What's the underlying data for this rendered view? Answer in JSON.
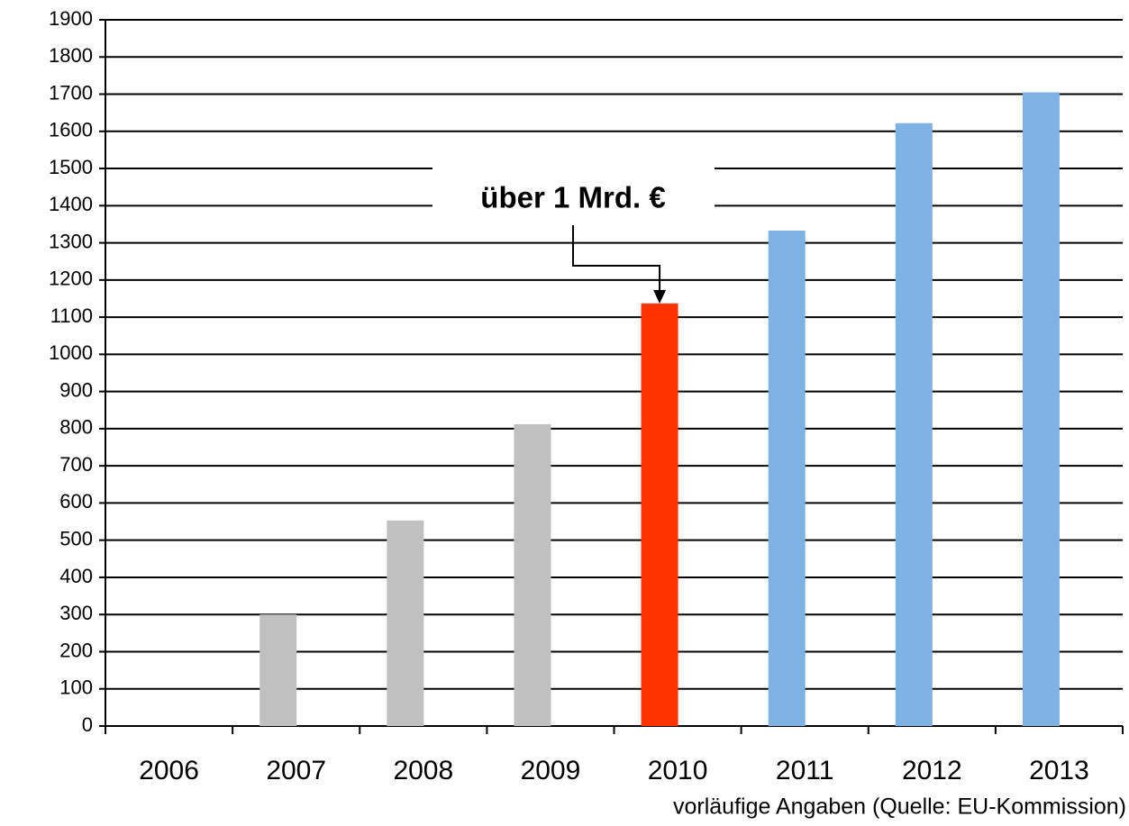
{
  "chart_data": {
    "type": "bar",
    "categories": [
      "2006",
      "2007",
      "2008",
      "2009",
      "2010",
      "2011",
      "2012",
      "2013"
    ],
    "values": [
      0,
      300,
      553,
      812,
      1137,
      1333,
      1622,
      1705
    ],
    "colors": [
      "#c0c0c0",
      "#c0c0c0",
      "#c0c0c0",
      "#c0c0c0",
      "#ff3300",
      "#7eb2e4",
      "#7eb2e4",
      "#7eb2e4"
    ],
    "ylim": [
      0,
      1900
    ],
    "yticks": [
      0,
      100,
      200,
      300,
      400,
      500,
      600,
      700,
      800,
      900,
      1000,
      1100,
      1200,
      1300,
      1400,
      1500,
      1600,
      1700,
      1800,
      1900
    ],
    "grid": true,
    "annotation": "über 1 Mrd. €",
    "source": "vorläufige Angaben (Quelle: EU-Kommission)"
  }
}
